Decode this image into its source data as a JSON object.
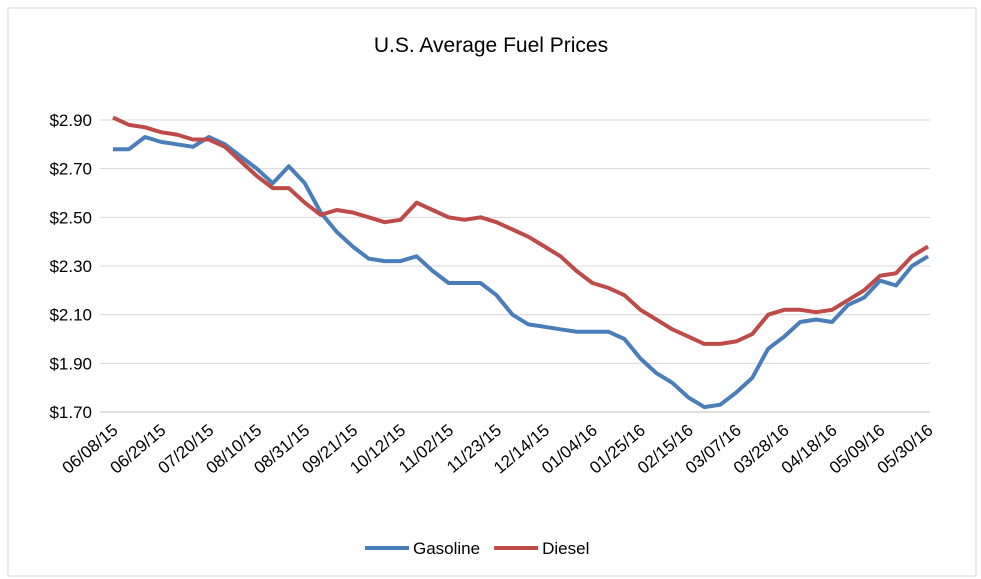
{
  "chart_data": {
    "type": "line",
    "title": "U.S. Average Fuel Prices",
    "categories": [
      "06/08/15",
      null,
      null,
      "06/29/15",
      null,
      null,
      "07/20/15",
      null,
      null,
      "08/10/15",
      null,
      null,
      "08/31/15",
      null,
      null,
      "09/21/15",
      null,
      null,
      "10/12/15",
      null,
      null,
      "11/02/15",
      null,
      null,
      "11/23/15",
      null,
      null,
      "12/14/15",
      null,
      null,
      "01/04/16",
      null,
      null,
      "01/25/16",
      null,
      null,
      "02/15/16",
      null,
      null,
      "03/07/16",
      null,
      null,
      "03/28/16",
      null,
      null,
      "04/18/16",
      null,
      null,
      "05/09/16",
      null,
      null,
      "05/30/16"
    ],
    "series": [
      {
        "name": "Gasoline",
        "color": "#4a7ebb",
        "values": [
          2.78,
          2.78,
          2.83,
          2.81,
          2.8,
          2.79,
          2.83,
          2.8,
          2.75,
          2.7,
          2.64,
          2.71,
          2.64,
          2.52,
          2.44,
          2.38,
          2.33,
          2.32,
          2.32,
          2.34,
          2.28,
          2.23,
          2.23,
          2.23,
          2.18,
          2.1,
          2.06,
          2.05,
          2.04,
          2.03,
          2.03,
          2.03,
          2.0,
          1.92,
          1.86,
          1.82,
          1.76,
          1.72,
          1.73,
          1.78,
          1.84,
          1.96,
          2.01,
          2.07,
          2.08,
          2.07,
          2.14,
          2.17,
          2.24,
          2.22,
          2.3,
          2.34
        ]
      },
      {
        "name": "Diesel",
        "color": "#be4b48",
        "values": [
          2.91,
          2.88,
          2.87,
          2.85,
          2.84,
          2.82,
          2.82,
          2.79,
          2.73,
          2.67,
          2.62,
          2.62,
          2.56,
          2.51,
          2.53,
          2.52,
          2.5,
          2.48,
          2.49,
          2.56,
          2.53,
          2.5,
          2.49,
          2.5,
          2.48,
          2.45,
          2.42,
          2.38,
          2.34,
          2.28,
          2.23,
          2.21,
          2.18,
          2.12,
          2.08,
          2.04,
          2.01,
          1.98,
          1.98,
          1.99,
          2.02,
          2.1,
          2.12,
          2.12,
          2.11,
          2.12,
          2.16,
          2.2,
          2.26,
          2.27,
          2.34,
          2.38
        ]
      }
    ],
    "ylim": [
      1.7,
      2.9
    ],
    "yticks": [
      {
        "value": 1.7,
        "label": "$1.70"
      },
      {
        "value": 1.9,
        "label": "$1.90"
      },
      {
        "value": 2.1,
        "label": "$2.10"
      },
      {
        "value": 2.3,
        "label": "$2.30"
      },
      {
        "value": 2.5,
        "label": "$2.50"
      },
      {
        "value": 2.7,
        "label": "$2.70"
      },
      {
        "value": 2.9,
        "label": "$2.90"
      }
    ],
    "grid": true,
    "legend": "bottom"
  }
}
